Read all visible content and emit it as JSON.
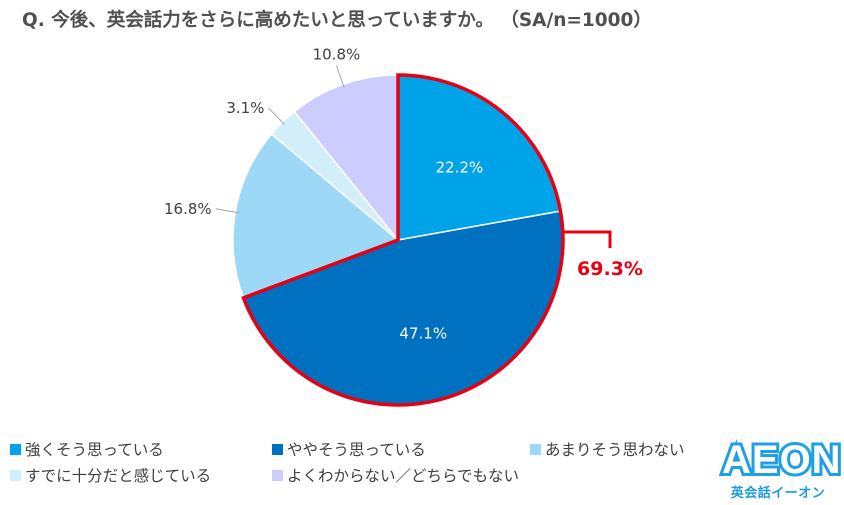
{
  "header": {
    "question": "Q. 今後、英会話力をさらに高めたいと思っていますか。 （SA/n=1000）"
  },
  "chart_data": {
    "type": "pie",
    "categories": [
      "強くそう思っている",
      "ややそう思っている",
      "あまりそう思わない",
      "すでに十分だと感じている",
      "よくわからない／どちらでもない"
    ],
    "values": [
      22.2,
      47.1,
      16.8,
      3.1,
      10.8
    ],
    "data_labels": [
      "22.2%",
      "47.1%",
      "16.8%",
      "3.1%",
      "10.8%"
    ],
    "colors": [
      "#00a2e8",
      "#0070c0",
      "#9dd9f6",
      "#d3eefb",
      "#ccccff"
    ],
    "label_colors": [
      "#ffffff",
      "#ffffff",
      "#404040",
      "#404040",
      "#404040"
    ],
    "start_angle_deg": 0,
    "direction": "clockwise",
    "legend_position": "bottom",
    "highlight": {
      "label": "69.3%",
      "categories": [
        "強くそう思っている",
        "ややそう思っている"
      ],
      "color": "#e60012"
    }
  },
  "logo": {
    "word": "AEON",
    "subtitle": "英会話イーオン"
  }
}
